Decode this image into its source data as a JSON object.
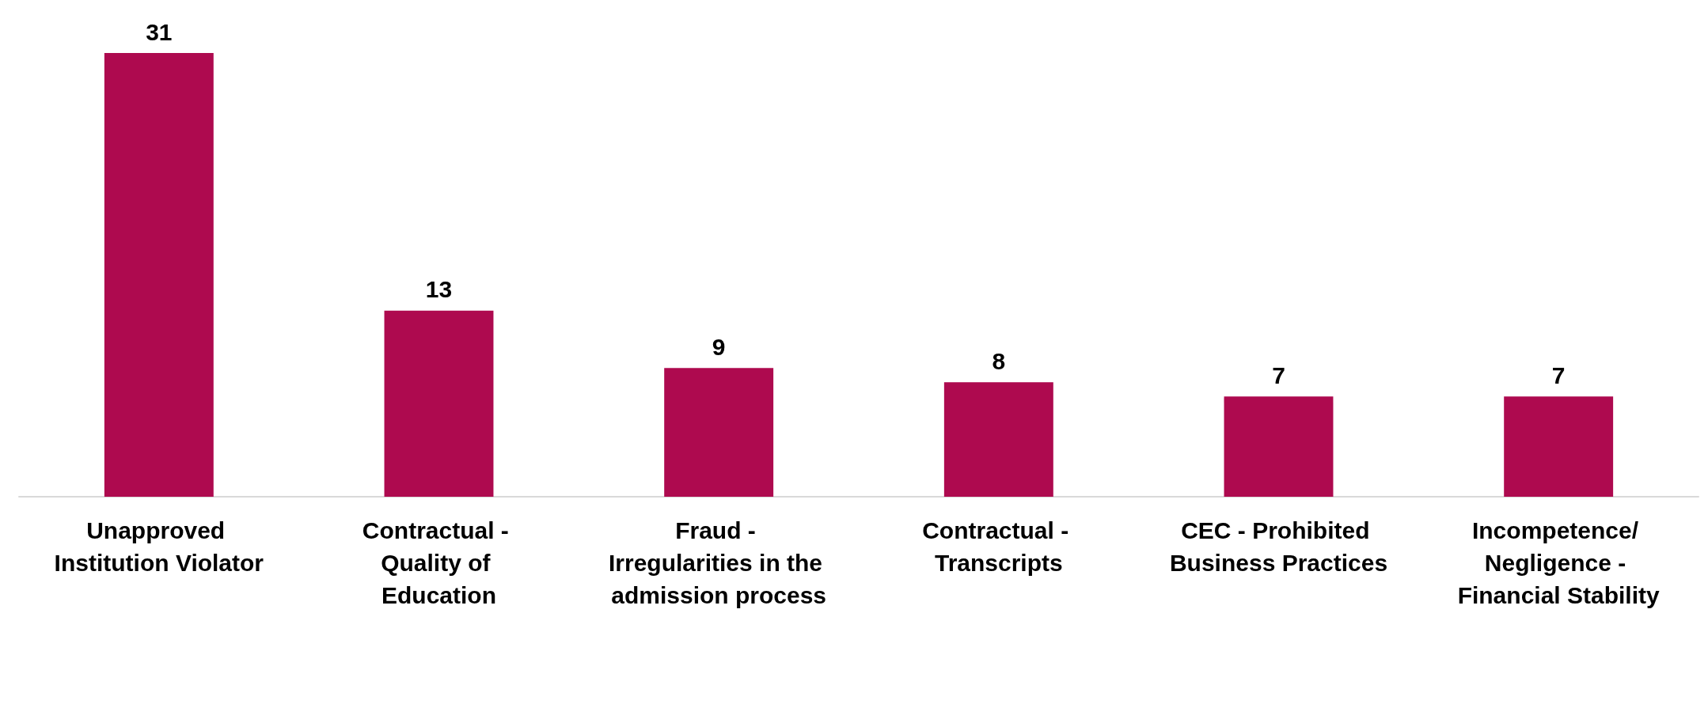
{
  "chart_data": {
    "type": "bar",
    "categories": [
      "Unapproved Institution Violator",
      "Contractual - Quality of Education",
      "Fraud - Irregularities in the admission process",
      "Contractual - Transcripts",
      "CEC - Prohibited Business Practices",
      "Incompetence/ Negligence - Financial Stability"
    ],
    "values": [
      31,
      13,
      9,
      8,
      7,
      7
    ],
    "color": "#ae0a4f",
    "data_labels": true
  }
}
